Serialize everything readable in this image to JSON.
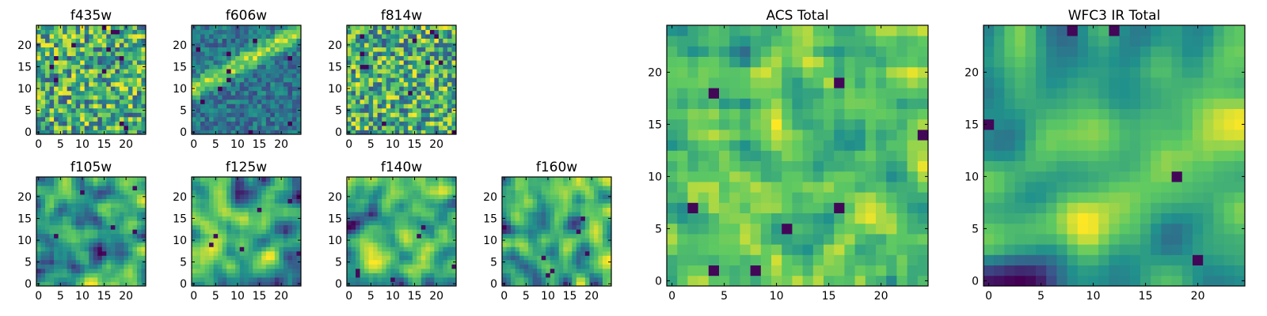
{
  "figure": {
    "palette": [
      "#440154",
      "#3b528b",
      "#21918c",
      "#5ec962",
      "#fde725"
    ]
  },
  "chart_data": [
    {
      "type": "heatmap",
      "title": "f435w",
      "xticks": [
        "0",
        "5",
        "10",
        "15",
        "20"
      ],
      "yticks": [
        "0",
        "5",
        "10",
        "15",
        "20"
      ],
      "grid_size": 25,
      "xlim": [
        -0.5,
        24.5
      ],
      "ylim": [
        -0.5,
        24.5
      ],
      "texture": "noise",
      "seed": 11
    },
    {
      "type": "heatmap",
      "title": "f606w",
      "xticks": [
        "0",
        "5",
        "10",
        "15",
        "20"
      ],
      "yticks": [
        "0",
        "5",
        "10",
        "15",
        "20"
      ],
      "grid_size": 25,
      "xlim": [
        -0.5,
        24.5
      ],
      "ylim": [
        -0.5,
        24.5
      ],
      "texture": "diagonal-band",
      "seed": 23
    },
    {
      "type": "heatmap",
      "title": "f814w",
      "xticks": [
        "0",
        "5",
        "10",
        "15",
        "20"
      ],
      "yticks": [
        "0",
        "5",
        "10",
        "15",
        "20"
      ],
      "grid_size": 25,
      "xlim": [
        -0.5,
        24.5
      ],
      "ylim": [
        -0.5,
        24.5
      ],
      "texture": "noise",
      "seed": 37
    },
    {
      "type": "heatmap",
      "title": "f105w",
      "xticks": [
        "0",
        "5",
        "10",
        "15",
        "20"
      ],
      "yticks": [
        "0",
        "5",
        "10",
        "15",
        "20"
      ],
      "grid_size": 25,
      "xlim": [
        -0.5,
        24.5
      ],
      "ylim": [
        -0.5,
        24.5
      ],
      "texture": "smooth",
      "seed": 41
    },
    {
      "type": "heatmap",
      "title": "f125w",
      "xticks": [
        "0",
        "5",
        "10",
        "15",
        "20"
      ],
      "yticks": [
        "0",
        "5",
        "10",
        "15",
        "20"
      ],
      "grid_size": 25,
      "xlim": [
        -0.5,
        24.5
      ],
      "ylim": [
        -0.5,
        24.5
      ],
      "texture": "smooth",
      "seed": 53
    },
    {
      "type": "heatmap",
      "title": "f140w",
      "xticks": [
        "0",
        "5",
        "10",
        "15",
        "20"
      ],
      "yticks": [
        "0",
        "5",
        "10",
        "15",
        "20"
      ],
      "grid_size": 25,
      "xlim": [
        -0.5,
        24.5
      ],
      "ylim": [
        -0.5,
        24.5
      ],
      "texture": "smooth",
      "seed": 67
    },
    {
      "type": "heatmap",
      "title": "f160w",
      "xticks": [
        "0",
        "5",
        "10",
        "15",
        "20"
      ],
      "yticks": [
        "0",
        "5",
        "10",
        "15",
        "20"
      ],
      "grid_size": 25,
      "xlim": [
        -0.5,
        24.5
      ],
      "ylim": [
        -0.5,
        24.5
      ],
      "texture": "smooth",
      "seed": 79
    },
    {
      "type": "heatmap",
      "title": "ACS Total",
      "xticks": [
        "0",
        "5",
        "10",
        "15",
        "20"
      ],
      "yticks": [
        "0",
        "5",
        "10",
        "15",
        "20"
      ],
      "grid_size": 25,
      "xlim": [
        -0.5,
        24.5
      ],
      "ylim": [
        -0.5,
        24.5
      ],
      "texture": "noise-bright",
      "seed": 89
    },
    {
      "type": "heatmap",
      "title": "WFC3 IR Total",
      "xticks": [
        "0",
        "5",
        "10",
        "15",
        "20"
      ],
      "yticks": [
        "0",
        "5",
        "10",
        "15",
        "20"
      ],
      "grid_size": 25,
      "xlim": [
        -0.5,
        24.5
      ],
      "ylim": [
        -0.5,
        24.5
      ],
      "texture": "smooth-bright",
      "seed": 97
    }
  ]
}
